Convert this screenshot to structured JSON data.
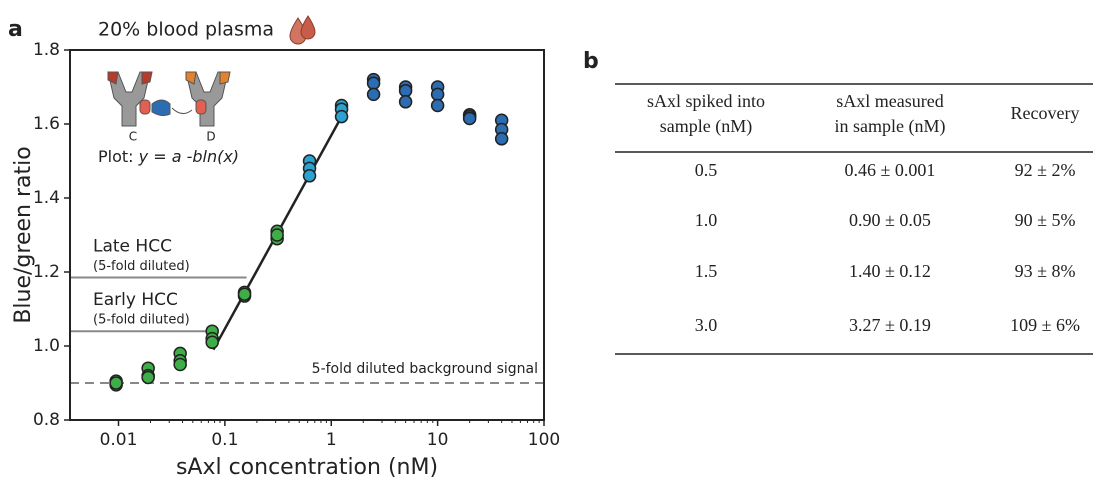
{
  "panel_a": "a",
  "panel_b": "b",
  "chart_data": {
    "type": "scatter",
    "title": "20% blood plasma",
    "xlabel": "sAxl concentration (nM)",
    "ylabel": "Blue/green ratio",
    "xscale": "log",
    "xlim": [
      0.0035,
      100
    ],
    "ylim": [
      0.8,
      1.8
    ],
    "xticks": [
      0.01,
      0.1,
      1,
      10,
      100
    ],
    "yticks": [
      0.8,
      {
        "value": 1,
        "label": "1.0"
      },
      1.2,
      1.4,
      1.6,
      1.8
    ],
    "series": [
      {
        "color": "#3fae49",
        "x": [
          0.0095,
          0.0095,
          0.0095,
          0.019,
          0.019,
          0.019,
          0.038,
          0.038,
          0.038,
          0.076,
          0.076,
          0.076,
          0.153,
          0.153,
          0.153,
          0.31,
          0.31,
          0.31
        ],
        "values": [
          0.905,
          0.895,
          0.9,
          0.94,
          0.92,
          0.915,
          0.98,
          0.96,
          0.95,
          1.04,
          1.02,
          1.01,
          1.145,
          1.135,
          1.14,
          1.31,
          1.29,
          1.3
        ]
      },
      {
        "color": "#2aa3d3",
        "x": [
          0.625,
          0.625,
          0.625,
          1.25,
          1.25,
          1.25
        ],
        "values": [
          1.5,
          1.48,
          1.46,
          1.65,
          1.64,
          1.62
        ]
      },
      {
        "color": "#2b6cb3",
        "x": [
          2.5,
          2.5,
          2.5,
          5,
          5,
          5,
          10,
          10,
          10,
          20,
          20,
          20,
          40,
          40,
          40
        ],
        "values": [
          1.72,
          1.71,
          1.68,
          1.7,
          1.69,
          1.66,
          1.7,
          1.68,
          1.65,
          1.625,
          1.62,
          1.615,
          1.61,
          1.585,
          1.56
        ]
      }
    ],
    "fit": {
      "color": "#222222",
      "x": [
        0.078,
        1.25
      ],
      "values": [
        0.99,
        1.62
      ]
    },
    "reference_lines": [
      {
        "label": "Late HCC",
        "sublabel": "(5-fold diluted)",
        "y": 1.185,
        "x_end": 0.16,
        "color": "#888888"
      },
      {
        "label": "Early HCC",
        "sublabel": "(5-fold diluted)",
        "y": 1.04,
        "x_end": 0.08,
        "color": "#888888"
      },
      {
        "label": "5-fold diluted background signal",
        "y": 0.9,
        "dashed": true,
        "color": "#888888"
      }
    ],
    "inset": {
      "formula_prefix": "Plot:",
      "formula": "y = a -bln(x)",
      "left_label": "C",
      "right_label": "D"
    }
  },
  "table": {
    "header": [
      [
        "sAxl spiked into",
        "sample (nM)"
      ],
      [
        "sAxl measured",
        "in sample (nM)"
      ],
      [
        "Recovery"
      ]
    ],
    "rows": [
      [
        "0.5",
        "0.46 ± 0.001",
        "92 ± 2%"
      ],
      [
        "1.0",
        "0.90 ± 0.05",
        "90 ± 5%"
      ],
      [
        "1.5",
        "1.40 ± 0.12",
        "93 ± 8%"
      ],
      [
        "3.0",
        "3.27 ± 0.19",
        "109 ± 6%"
      ]
    ]
  }
}
